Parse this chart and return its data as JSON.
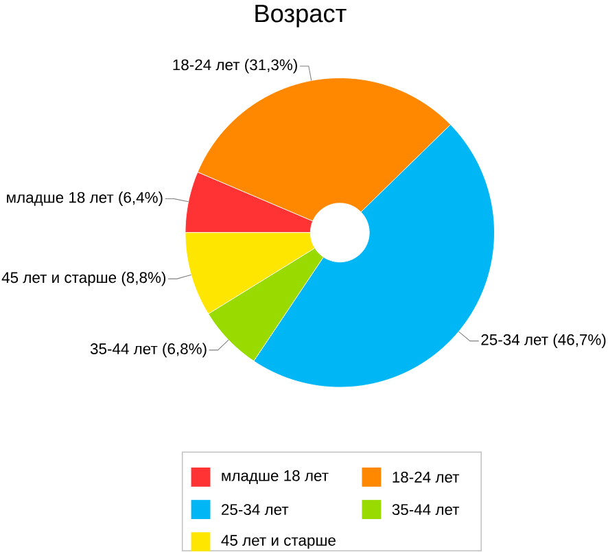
{
  "chart_data": {
    "type": "donut",
    "title": "Возраст",
    "categories": [
      "младше 18 лет",
      "18-24 лет",
      "25-34 лет",
      "35-44 лет",
      "45 лет и старше"
    ],
    "values": [
      6.4,
      31.3,
      46.7,
      6.8,
      8.8
    ],
    "colors": [
      "#ff3333",
      "#ff8800",
      "#00b6f5",
      "#99db00",
      "#ffe600"
    ],
    "value_labels": [
      "младше 18 лет (6,4%)",
      "18-24 лет (31,3%)",
      "25-34 лет (46,7%)",
      "35-44 лет (6,8%)",
      "45 лет и старше (8,8%)"
    ],
    "legend": "bottom"
  }
}
